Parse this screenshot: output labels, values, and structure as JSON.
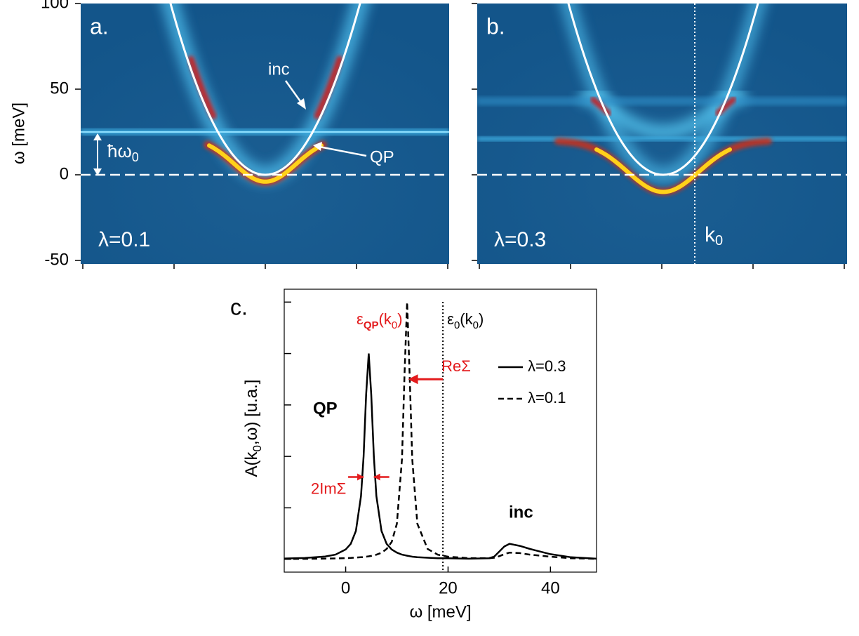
{
  "chart_data": [
    {
      "type": "image",
      "panel": "a.",
      "ylabel": "ω [meV]",
      "ylim": [
        -50,
        100
      ],
      "yticks": [
        -50,
        0,
        50,
        100
      ],
      "lambda": "λ=0.1",
      "inc": "inc",
      "qp": "QP",
      "phonon": [
        "ħω",
        "0"
      ]
    },
    {
      "type": "image",
      "panel": "b.",
      "lambda": "λ=0.3",
      "k0": [
        "k",
        "0"
      ]
    },
    {
      "type": "line",
      "panel": "c.",
      "xlabel": "ω [meV]",
      "ylabel": [
        "A(k",
        "0",
        ",ω) [u.a.]"
      ],
      "xlim": [
        -12,
        49
      ],
      "xticks": [
        0,
        20,
        40
      ],
      "ylim": [
        -0.25,
        5.25
      ],
      "yticks": [
        0,
        1,
        2,
        3,
        4,
        5
      ],
      "x": [
        -12,
        -8,
        -4,
        -2,
        0,
        1,
        2,
        3,
        3.5,
        4,
        4.5,
        5,
        5.5,
        6,
        7,
        8,
        9,
        10,
        11,
        11.5,
        12,
        12.5,
        13,
        14,
        16,
        18,
        20,
        24,
        28,
        29,
        30,
        31,
        32,
        34,
        36,
        40,
        44,
        49
      ],
      "series": [
        {
          "name": "λ=0.3",
          "color": "#000000",
          "dash": "solid",
          "values": [
            0.015,
            0.025,
            0.054,
            0.09,
            0.19,
            0.3,
            0.55,
            1.23,
            2.0,
            3.2,
            4.0,
            3.2,
            2.0,
            1.23,
            0.55,
            0.3,
            0.19,
            0.13,
            0.09,
            0.08,
            0.07,
            0.06,
            0.05,
            0.04,
            0.03,
            0.02,
            0.02,
            0.01,
            0.02,
            0.05,
            0.15,
            0.25,
            0.3,
            0.26,
            0.2,
            0.1,
            0.04,
            0.01
          ]
        },
        {
          "name": "λ=0.1",
          "color": "#000000",
          "dash": "dashed",
          "values": [
            0.005,
            0.008,
            0.012,
            0.016,
            0.022,
            0.026,
            0.032,
            0.04,
            0.044,
            0.05,
            0.057,
            0.065,
            0.075,
            0.088,
            0.127,
            0.2,
            0.34,
            0.69,
            1.95,
            3.59,
            5.0,
            3.59,
            1.95,
            0.69,
            0.2,
            0.088,
            0.05,
            0.022,
            0.02,
            0.03,
            0.06,
            0.1,
            0.13,
            0.12,
            0.09,
            0.05,
            0.02,
            0.008
          ]
        }
      ],
      "legend": "upper right",
      "bare_energy": 19,
      "bare_label": [
        "ε",
        "0",
        "(k",
        "0",
        ")"
      ],
      "qp_energy": 12.2,
      "qp_label": [
        "ε",
        "QP",
        "(k",
        "0",
        ")"
      ],
      "re_sigma": "ReΣ",
      "im_sigma": "2ImΣ",
      "qp": "QP",
      "inc": "inc"
    }
  ]
}
